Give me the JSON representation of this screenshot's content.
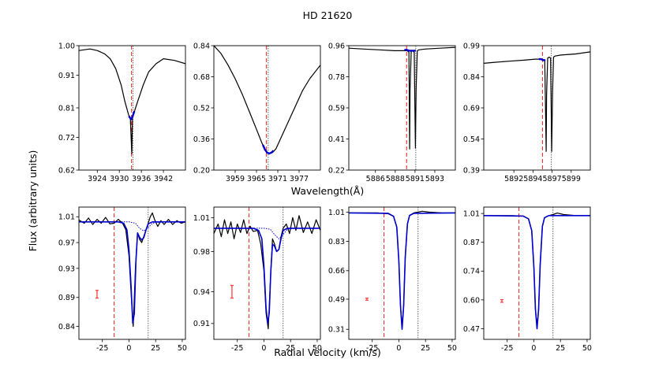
{
  "title": "HD 21620",
  "ylabel": "Flux (arbitrary units)",
  "xlabel_top": "Wavelength(Å)",
  "xlabel_bottom": "Radial Velocity (km/s)",
  "colors": {
    "data": "#000000",
    "model": "#0000cc",
    "red": "#ff3333",
    "gray": "#555555"
  },
  "chart_data": [
    {
      "type": "line",
      "row": "top",
      "xlim": [
        3919,
        3948
      ],
      "ylim": [
        0.62,
        1.0
      ],
      "xticks": [
        "3924",
        "3930",
        "3936",
        "3942"
      ],
      "xtick_vals": [
        3924,
        3930,
        3936,
        3942
      ],
      "yticks": [
        "0.62",
        "0.72",
        "0.81",
        "0.91",
        "1.00"
      ],
      "ytick_vals": [
        0.62,
        0.72,
        0.81,
        0.91,
        1.0
      ],
      "vline_red": 3933.3,
      "vline_gray": 3933.7,
      "series": [
        {
          "name": "observed",
          "x": [
            3919,
            3922,
            3924,
            3926,
            3927.5,
            3929,
            3930.5,
            3931.5,
            3932.5,
            3933.0,
            3933.4,
            3933.5,
            3933.6,
            3934.0,
            3935.0,
            3936.5,
            3938,
            3940,
            3942,
            3945,
            3948
          ],
          "y": [
            0.985,
            0.99,
            0.985,
            0.975,
            0.96,
            0.93,
            0.88,
            0.83,
            0.79,
            0.775,
            0.67,
            0.74,
            0.785,
            0.795,
            0.83,
            0.88,
            0.92,
            0.945,
            0.96,
            0.955,
            0.945
          ]
        },
        {
          "name": "model",
          "x": [
            3932.6,
            3932.9,
            3933.2,
            3933.5,
            3933.8,
            3934.1
          ],
          "y": [
            0.785,
            0.78,
            0.775,
            0.78,
            0.79,
            0.8
          ]
        }
      ]
    },
    {
      "type": "line",
      "row": "top",
      "xlim": [
        3953,
        3983
      ],
      "ylim": [
        0.2,
        0.84
      ],
      "xticks": [
        "3959",
        "3965",
        "3971",
        "3977"
      ],
      "xtick_vals": [
        3959,
        3965,
        3971,
        3977
      ],
      "yticks": [
        "0.20",
        "0.36",
        "0.52",
        "0.68",
        "0.84"
      ],
      "ytick_vals": [
        0.2,
        0.36,
        0.52,
        0.68,
        0.84
      ],
      "vline_red": 3967.8,
      "vline_gray": 3968.3,
      "series": [
        {
          "name": "observed",
          "x": [
            3953,
            3955,
            3957,
            3959,
            3961,
            3963,
            3965,
            3966.5,
            3967.5,
            3968.5,
            3969.5,
            3970.5,
            3972,
            3974,
            3976,
            3978,
            3980,
            3983
          ],
          "y": [
            0.84,
            0.8,
            0.74,
            0.67,
            0.59,
            0.5,
            0.41,
            0.34,
            0.3,
            0.285,
            0.29,
            0.31,
            0.37,
            0.45,
            0.53,
            0.61,
            0.67,
            0.74
          ]
        },
        {
          "name": "model",
          "x": [
            3966.8,
            3967.4,
            3968.0,
            3968.6,
            3969.2,
            3969.8
          ],
          "y": [
            0.33,
            0.305,
            0.29,
            0.285,
            0.29,
            0.3
          ]
        }
      ]
    },
    {
      "type": "line",
      "row": "top",
      "xlim": [
        5882,
        5896
      ],
      "ylim": [
        0.22,
        0.96
      ],
      "xticks": [
        "5886",
        "5888",
        "5891",
        "5893"
      ],
      "xtick_vals": [
        5885.5,
        5888.1,
        5890.7,
        5893.3
      ],
      "yticks": [
        "0.22",
        "0.41",
        "0.59",
        "0.78",
        "0.96"
      ],
      "ytick_vals": [
        0.22,
        0.405,
        0.59,
        0.775,
        0.96
      ],
      "vline_red": 5889.6,
      "vline_gray": 5890.8,
      "series": [
        {
          "name": "observed",
          "x": [
            5882,
            5884,
            5886,
            5888,
            5889.4,
            5889.7,
            5889.9,
            5890.0,
            5890.05,
            5890.2,
            5890.4,
            5890.6,
            5890.75,
            5890.85,
            5891.0,
            5891.2,
            5892,
            5894,
            5896
          ],
          "y": [
            0.945,
            0.94,
            0.935,
            0.93,
            0.93,
            0.93,
            0.92,
            0.345,
            0.7,
            0.93,
            0.93,
            0.92,
            0.35,
            0.7,
            0.93,
            0.935,
            0.94,
            0.945,
            0.95
          ]
        },
        {
          "name": "model",
          "x": [
            5889.3,
            5889.6,
            5889.9,
            5890.2,
            5890.5,
            5890.8
          ],
          "y": [
            0.935,
            0.935,
            0.93,
            0.93,
            0.93,
            0.93
          ]
        }
      ]
    },
    {
      "type": "line",
      "row": "top",
      "xlim": [
        5887.5,
        5902
      ],
      "ylim": [
        0.39,
        0.99
      ],
      "xticks": [
        "5892",
        "5894",
        "5897",
        "5899"
      ],
      "xtick_vals": [
        5891.6,
        5894.2,
        5896.8,
        5899.4
      ],
      "yticks": [
        "0.39",
        "0.54",
        "0.69",
        "0.84",
        "0.99"
      ],
      "ytick_vals": [
        0.39,
        0.54,
        0.69,
        0.84,
        0.99
      ],
      "vline_red": 5895.5,
      "vline_gray": 5896.7,
      "series": [
        {
          "name": "observed",
          "x": [
            5887.5,
            5889,
            5891,
            5893,
            5894.5,
            5895.4,
            5895.8,
            5896.0,
            5896.05,
            5896.2,
            5896.4,
            5896.6,
            5896.75,
            5896.85,
            5897.0,
            5897.2,
            5898,
            5900,
            5902
          ],
          "y": [
            0.905,
            0.91,
            0.915,
            0.92,
            0.925,
            0.925,
            0.92,
            0.48,
            0.75,
            0.93,
            0.935,
            0.93,
            0.48,
            0.75,
            0.935,
            0.94,
            0.945,
            0.95,
            0.96
          ]
        },
        {
          "name": "model",
          "x": [
            5895.0,
            5895.3,
            5895.6,
            5895.9
          ],
          "y": [
            0.925,
            0.925,
            0.92,
            0.92
          ]
        }
      ]
    },
    {
      "type": "line",
      "row": "bottom",
      "xlim": [
        -47,
        53
      ],
      "ylim": [
        0.82,
        1.025
      ],
      "xticks": [
        "-25",
        "0",
        "25",
        "50"
      ],
      "xtick_vals": [
        -25,
        0,
        25,
        50
      ],
      "yticks": [
        "0.84",
        "0.89",
        "0.93",
        "0.97",
        "1.01"
      ],
      "ytick_vals": [
        0.84,
        0.885,
        0.93,
        0.97,
        1.01
      ],
      "vline_red": -14,
      "vline_gray": 18,
      "errbar": {
        "x": -30,
        "y": 0.89,
        "err": 0.006
      },
      "series": [
        {
          "name": "observed",
          "x": [
            -47,
            -42,
            -38,
            -34,
            -30,
            -26,
            -22,
            -18,
            -14,
            -10,
            -6,
            -3,
            0,
            2,
            4,
            6,
            8,
            10,
            12,
            14,
            16,
            18,
            20,
            22,
            24,
            27,
            30,
            33,
            37,
            41,
            45,
            49,
            53
          ],
          "y": [
            1.005,
            1.0,
            1.008,
            0.998,
            1.006,
            1.0,
            1.009,
            0.999,
            1.0,
            1.006,
            1.0,
            0.99,
            0.95,
            0.89,
            0.84,
            0.93,
            0.985,
            0.975,
            0.97,
            0.98,
            0.99,
            1.0,
            1.01,
            1.016,
            1.006,
            0.995,
            1.004,
            0.998,
            1.006,
            0.998,
            1.004,
            1.0,
            1.002
          ]
        },
        {
          "name": "model",
          "x": [
            -47,
            -10,
            -5,
            -2,
            0,
            2,
            3.5,
            5,
            6.5,
            8,
            10,
            12,
            14,
            16,
            18,
            22,
            30,
            53
          ],
          "y": [
            1.002,
            1.002,
            1.0,
            0.99,
            0.96,
            0.9,
            0.845,
            0.86,
            0.94,
            0.985,
            0.978,
            0.974,
            0.978,
            0.99,
            0.999,
            1.002,
            1.002,
            1.002
          ]
        },
        {
          "name": "component",
          "x": [
            -47,
            0,
            6,
            10,
            14,
            18,
            22,
            30,
            53
          ],
          "y": [
            1.002,
            1.002,
            1.0,
            0.992,
            0.988,
            0.993,
            1.0,
            1.002,
            1.002
          ]
        }
      ]
    },
    {
      "type": "line",
      "row": "bottom",
      "xlim": [
        -47,
        53
      ],
      "ylim": [
        0.895,
        1.02
      ],
      "xticks": [
        "-25",
        "0",
        "25",
        "50"
      ],
      "xtick_vals": [
        -25,
        0,
        25,
        50
      ],
      "yticks": [
        "0.91",
        "0.94",
        "0.98",
        "1.01"
      ],
      "ytick_vals": [
        0.91,
        0.94,
        0.978,
        1.01
      ],
      "vline_red": -14,
      "vline_gray": 18,
      "errbar": {
        "x": -30,
        "y": 0.94,
        "err": 0.006
      },
      "series": [
        {
          "name": "observed",
          "x": [
            -47,
            -43,
            -40,
            -37,
            -34,
            -31,
            -28,
            -25,
            -22,
            -19,
            -16,
            -13,
            -10,
            -6,
            -3,
            0,
            2,
            4,
            6,
            8,
            10,
            12,
            14,
            16,
            18,
            21,
            24,
            27,
            30,
            33,
            37,
            41,
            45,
            49,
            53
          ],
          "y": [
            0.995,
            1.004,
            0.992,
            1.008,
            0.995,
            1.006,
            0.99,
            1.004,
            0.996,
            1.008,
            0.995,
            1.002,
            0.997,
            0.998,
            0.985,
            0.96,
            0.92,
            0.905,
            0.95,
            0.99,
            0.985,
            0.978,
            0.98,
            0.992,
            1.0,
            1.004,
            0.995,
            1.01,
            0.998,
            1.012,
            0.996,
            1.006,
            0.995,
            1.008,
            0.998
          ]
        },
        {
          "name": "model",
          "x": [
            -47,
            -10,
            -5,
            -2,
            0,
            2,
            3.5,
            5,
            6.5,
            8,
            10,
            12,
            14,
            16,
            18,
            22,
            30,
            53
          ],
          "y": [
            1.0,
            1.0,
            0.998,
            0.99,
            0.965,
            0.925,
            0.91,
            0.92,
            0.96,
            0.985,
            0.983,
            0.978,
            0.98,
            0.99,
            0.998,
            1.0,
            1.0,
            1.0
          ]
        },
        {
          "name": "component",
          "x": [
            -47,
            0,
            6,
            10,
            14,
            18,
            22,
            30,
            53
          ],
          "y": [
            1.0,
            1.0,
            0.999,
            0.994,
            0.99,
            0.994,
            0.999,
            1.0,
            1.0
          ]
        }
      ]
    },
    {
      "type": "line",
      "row": "bottom",
      "xlim": [
        -47,
        53
      ],
      "ylim": [
        0.25,
        1.04
      ],
      "xticks": [
        "-25",
        "0",
        "25",
        "50"
      ],
      "xtick_vals": [
        -25,
        0,
        25,
        50
      ],
      "yticks": [
        "0.31",
        "0.49",
        "0.66",
        "0.83",
        "1.01"
      ],
      "ytick_vals": [
        0.31,
        0.49,
        0.66,
        0.835,
        1.01
      ],
      "vline_red": -14,
      "vline_gray": 18,
      "errbar": {
        "x": -30,
        "y": 0.49,
        "err": 0.006
      },
      "series": [
        {
          "name": "observed",
          "x": [
            -47,
            -20,
            -10,
            -5,
            -2,
            0,
            1.5,
            3,
            4.5,
            6,
            8,
            10,
            14,
            18,
            22,
            28,
            40,
            53
          ],
          "y": [
            1.005,
            1.005,
            1.0,
            0.985,
            0.92,
            0.72,
            0.45,
            0.32,
            0.45,
            0.74,
            0.94,
            0.99,
            1.005,
            1.01,
            1.015,
            1.01,
            1.005,
            1.005
          ]
        },
        {
          "name": "model",
          "x": [
            -47,
            -10,
            -5,
            -2,
            0,
            1.5,
            3,
            4.5,
            6,
            8,
            10,
            14,
            53
          ],
          "y": [
            1.005,
            1.003,
            0.985,
            0.92,
            0.72,
            0.45,
            0.31,
            0.45,
            0.74,
            0.94,
            0.99,
            1.003,
            1.005
          ]
        }
      ]
    },
    {
      "type": "line",
      "row": "bottom",
      "xlim": [
        -47,
        53
      ],
      "ylim": [
        0.42,
        1.04
      ],
      "xticks": [
        "-25",
        "0",
        "25",
        "50"
      ],
      "xtick_vals": [
        -25,
        0,
        25,
        50
      ],
      "yticks": [
        "0.47",
        "0.60",
        "0.74",
        "0.87",
        "1.01"
      ],
      "ytick_vals": [
        0.47,
        0.605,
        0.74,
        0.875,
        1.01
      ],
      "vline_red": -14,
      "vline_gray": 18,
      "errbar": {
        "x": -30,
        "y": 0.6,
        "err": 0.006
      },
      "series": [
        {
          "name": "observed",
          "x": [
            -47,
            -20,
            -10,
            -5,
            -2,
            0,
            1.5,
            3,
            4.5,
            6,
            8,
            10,
            14,
            18,
            22,
            28,
            40,
            53
          ],
          "y": [
            1.0,
            1.0,
            0.998,
            0.985,
            0.93,
            0.76,
            0.56,
            0.48,
            0.56,
            0.77,
            0.95,
            0.99,
            1.0,
            1.005,
            1.012,
            1.005,
            1.0,
            1.0
          ]
        },
        {
          "name": "model",
          "x": [
            -47,
            -10,
            -5,
            -2,
            0,
            1.5,
            3,
            4.5,
            6,
            8,
            10,
            14,
            53
          ],
          "y": [
            1.0,
            0.998,
            0.985,
            0.93,
            0.76,
            0.56,
            0.47,
            0.56,
            0.77,
            0.95,
            0.99,
            1.0,
            1.0
          ]
        }
      ]
    }
  ]
}
